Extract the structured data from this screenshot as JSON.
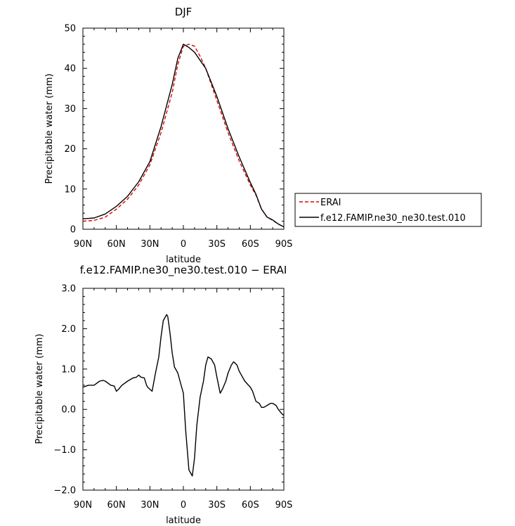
{
  "chart_data": [
    {
      "type": "line",
      "title": "DJF",
      "xlabel": "latitude",
      "ylabel": "Precipitable water (mm)",
      "xlim": [
        90,
        -90
      ],
      "ylim": [
        0,
        50
      ],
      "x_ticks": [
        90,
        60,
        30,
        0,
        -30,
        -60,
        -90
      ],
      "x_tick_labels": [
        "90N",
        "60N",
        "30N",
        "0",
        "30S",
        "60S",
        "90S"
      ],
      "y_ticks": [
        0,
        10,
        20,
        30,
        40,
        50
      ],
      "y_tick_labels": [
        "0",
        "10",
        "20",
        "30",
        "40",
        "50"
      ],
      "legend_position": "right",
      "series": [
        {
          "name": "ERAI",
          "color": "#e00000",
          "style": "dashed",
          "x": [
            90,
            80,
            70,
            60,
            50,
            40,
            30,
            20,
            10,
            5,
            0,
            -5,
            -10,
            -15,
            -20,
            -30,
            -40,
            -50,
            -60,
            -65,
            -70,
            -75,
            -80,
            -85,
            -90
          ],
          "y": [
            2,
            2.2,
            3,
            5,
            7.5,
            11,
            16,
            24,
            34,
            41,
            45.5,
            46,
            45.5,
            43,
            40,
            32,
            24,
            17,
            11,
            8.5,
            5,
            3,
            2.2,
            1.3,
            0.6
          ]
        },
        {
          "name": "f.e12.FAMIP.ne30_ne30.test.010",
          "color": "#000000",
          "style": "solid",
          "x": [
            90,
            80,
            70,
            60,
            50,
            40,
            30,
            20,
            10,
            5,
            0,
            -5,
            -10,
            -15,
            -20,
            -30,
            -40,
            -50,
            -60,
            -65,
            -70,
            -75,
            -80,
            -85,
            -90
          ],
          "y": [
            2.6,
            2.8,
            3.8,
            5.7,
            8.2,
            11.8,
            16.8,
            25.5,
            36,
            42.5,
            46,
            45.2,
            44,
            42,
            40,
            33,
            25,
            18,
            11.6,
            8.7,
            5,
            3,
            2.3,
            1.3,
            0.6
          ]
        }
      ]
    },
    {
      "type": "line",
      "title": "f.e12.FAMIP.ne30_ne30.test.010 − ERAI",
      "xlabel": "latitude",
      "ylabel": "Precipitable water (mm)",
      "xlim": [
        90,
        -90
      ],
      "ylim": [
        -2,
        3
      ],
      "x_ticks": [
        90,
        60,
        30,
        0,
        -30,
        -60,
        -90
      ],
      "x_tick_labels": [
        "90N",
        "60N",
        "30N",
        "0",
        "30S",
        "60S",
        "90S"
      ],
      "y_ticks": [
        -2,
        -1,
        0,
        1,
        2,
        3
      ],
      "y_tick_labels": [
        "−2.0",
        "−1.0",
        "0.0",
        "1.0",
        "2.0",
        "3.0"
      ],
      "series": [
        {
          "color": "#000000",
          "style": "solid",
          "x": [
            90,
            85,
            80,
            75,
            72,
            70,
            65,
            62,
            60,
            58,
            55,
            50,
            45,
            42,
            40,
            38,
            35,
            33,
            32,
            30,
            28,
            25,
            22,
            20,
            18,
            15,
            14,
            12,
            10,
            8,
            5,
            3,
            0,
            -2,
            -5,
            -8,
            -10,
            -12,
            -15,
            -18,
            -20,
            -22,
            -25,
            -28,
            -30,
            -33,
            -35,
            -38,
            -40,
            -43,
            -45,
            -48,
            -50,
            -55,
            -60,
            -62,
            -65,
            -68,
            -70,
            -72,
            -75,
            -78,
            -80,
            -83,
            -85,
            -88,
            -90
          ],
          "y": [
            0.55,
            0.6,
            0.6,
            0.7,
            0.72,
            0.7,
            0.6,
            0.58,
            0.45,
            0.5,
            0.6,
            0.7,
            0.78,
            0.8,
            0.85,
            0.8,
            0.78,
            0.6,
            0.55,
            0.5,
            0.45,
            0.9,
            1.3,
            1.8,
            2.2,
            2.35,
            2.3,
            1.9,
            1.4,
            1.05,
            0.9,
            0.7,
            0.4,
            -0.5,
            -1.5,
            -1.65,
            -1.2,
            -0.4,
            0.3,
            0.7,
            1.1,
            1.3,
            1.25,
            1.1,
            0.8,
            0.4,
            0.5,
            0.7,
            0.9,
            1.1,
            1.18,
            1.1,
            0.95,
            0.7,
            0.55,
            0.45,
            0.2,
            0.15,
            0.05,
            0.05,
            0.1,
            0.15,
            0.15,
            0.1,
            0.0,
            -0.1,
            -0.15
          ]
        }
      ]
    }
  ]
}
